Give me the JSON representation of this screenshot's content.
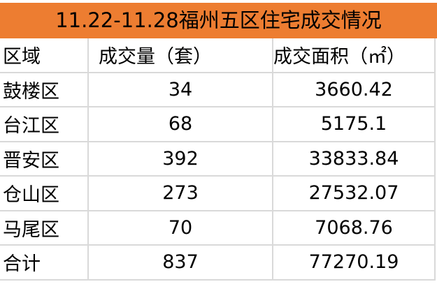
{
  "title": "11.22-11.28福州五区住宅成交情况",
  "colors": {
    "title_bg": "#ED7D31",
    "grid": "#d9d9d9"
  },
  "headers": [
    "区域",
    "成交量（套）",
    "成交面积（㎡）"
  ],
  "rows": [
    {
      "district": "鼓楼区",
      "units": "34",
      "area": "3660.42"
    },
    {
      "district": "台江区",
      "units": "68",
      "area": "5175.1"
    },
    {
      "district": "晋安区",
      "units": "392",
      "area": "33833.84"
    },
    {
      "district": "仓山区",
      "units": "273",
      "area": "27532.07"
    },
    {
      "district": "马尾区",
      "units": "70",
      "area": "7068.76"
    },
    {
      "district": "合计",
      "units": "837",
      "area": "77270.19"
    }
  ]
}
